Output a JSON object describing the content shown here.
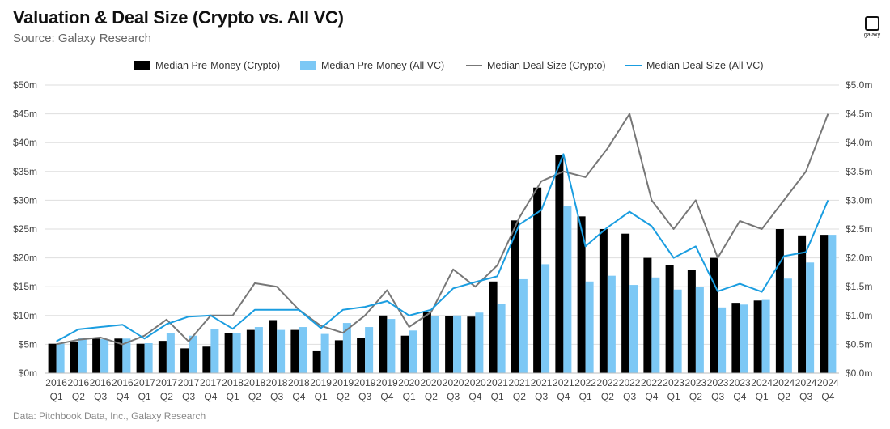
{
  "header": {
    "title": "Valuation & Deal Size (Crypto vs. All VC)",
    "subtitle": "Source: Galaxy Research"
  },
  "footer": {
    "note": "Data: Pitchbook Data, Inc., Galaxy Research"
  },
  "logo": {
    "text": "galaxy",
    "icon": "galaxy-logo-icon"
  },
  "colors": {
    "crypto_bar": "#000000",
    "allvc_bar": "#7cc8f5",
    "crypto_line": "#777777",
    "allvc_line": "#1a9de0"
  },
  "chart_data": {
    "type": "bar",
    "legend_position": "top",
    "grid": true,
    "categories": [
      {
        "year": "2016",
        "q": "Q1"
      },
      {
        "year": "2016",
        "q": "Q2"
      },
      {
        "year": "2016",
        "q": "Q3"
      },
      {
        "year": "2016",
        "q": "Q4"
      },
      {
        "year": "2017",
        "q": "Q1"
      },
      {
        "year": "2017",
        "q": "Q2"
      },
      {
        "year": "2017",
        "q": "Q3"
      },
      {
        "year": "2017",
        "q": "Q4"
      },
      {
        "year": "2018",
        "q": "Q1"
      },
      {
        "year": "2018",
        "q": "Q2"
      },
      {
        "year": "2018",
        "q": "Q3"
      },
      {
        "year": "2018",
        "q": "Q4"
      },
      {
        "year": "2019",
        "q": "Q1"
      },
      {
        "year": "2019",
        "q": "Q2"
      },
      {
        "year": "2019",
        "q": "Q3"
      },
      {
        "year": "2019",
        "q": "Q4"
      },
      {
        "year": "2020",
        "q": "Q1"
      },
      {
        "year": "2020",
        "q": "Q2"
      },
      {
        "year": "2020",
        "q": "Q3"
      },
      {
        "year": "2020",
        "q": "Q4"
      },
      {
        "year": "2021",
        "q": "Q1"
      },
      {
        "year": "2021",
        "q": "Q2"
      },
      {
        "year": "2021",
        "q": "Q3"
      },
      {
        "year": "2021",
        "q": "Q4"
      },
      {
        "year": "2022",
        "q": "Q1"
      },
      {
        "year": "2022",
        "q": "Q2"
      },
      {
        "year": "2022",
        "q": "Q3"
      },
      {
        "year": "2022",
        "q": "Q4"
      },
      {
        "year": "2023",
        "q": "Q1"
      },
      {
        "year": "2023",
        "q": "Q2"
      },
      {
        "year": "2023",
        "q": "Q3"
      },
      {
        "year": "2023",
        "q": "Q4"
      },
      {
        "year": "2024",
        "q": "Q1"
      },
      {
        "year": "2024",
        "q": "Q2"
      },
      {
        "year": "2024",
        "q": "Q3"
      },
      {
        "year": "2024",
        "q": "Q4"
      }
    ],
    "left_axis": {
      "min": 0,
      "max": 50,
      "ticks": [
        "$0m",
        "$5m",
        "$10m",
        "$15m",
        "$20m",
        "$25m",
        "$30m",
        "$35m",
        "$40m",
        "$45m",
        "$50m"
      ]
    },
    "right_axis": {
      "min": 0,
      "max": 5,
      "ticks": [
        "$0.0m",
        "$0.5m",
        "$1.0m",
        "$1.5m",
        "$2.0m",
        "$2.5m",
        "$3.0m",
        "$3.5m",
        "$4.0m",
        "$4.5m",
        "$5.0m"
      ]
    },
    "series": [
      {
        "name": "Median Pre-Money (Crypto)",
        "kind": "bar",
        "axis": "left",
        "color": "#000000",
        "values": [
          5.1,
          5.5,
          6.0,
          6.0,
          5.1,
          5.6,
          4.3,
          4.6,
          7.0,
          7.5,
          9.2,
          7.5,
          3.8,
          5.7,
          6.1,
          10.0,
          6.5,
          10.6,
          9.9,
          9.8,
          15.9,
          26.5,
          32.2,
          37.9,
          27.2,
          25.0,
          24.2,
          20.0,
          18.7,
          17.9,
          20.0,
          12.2,
          12.6,
          25.0,
          23.9,
          24.0
        ]
      },
      {
        "name": "Median Pre-Money (All VC)",
        "kind": "bar",
        "axis": "left",
        "color": "#7cc8f5",
        "values": [
          5.1,
          6.1,
          5.9,
          6.0,
          5.2,
          7.0,
          6.5,
          7.6,
          7.0,
          8.0,
          7.5,
          8.0,
          6.8,
          8.7,
          8.0,
          9.4,
          7.4,
          9.9,
          10.0,
          10.5,
          12.0,
          16.3,
          18.9,
          29.0,
          15.9,
          16.9,
          15.3,
          16.6,
          14.5,
          15.0,
          11.4,
          11.9,
          12.7,
          16.4,
          19.2,
          24.0
        ]
      },
      {
        "name": "Median Deal Size (Crypto)",
        "kind": "line",
        "axis": "right",
        "color": "#777777",
        "values": [
          0.5,
          0.58,
          0.62,
          0.5,
          0.65,
          0.93,
          0.55,
          1.0,
          1.0,
          1.56,
          1.5,
          1.1,
          0.82,
          0.7,
          1.0,
          1.44,
          0.8,
          1.06,
          1.8,
          1.5,
          1.87,
          2.7,
          3.33,
          3.5,
          3.4,
          3.9,
          4.5,
          3.0,
          2.5,
          3.0,
          2.0,
          2.64,
          2.5,
          3.0,
          3.5,
          4.5
        ]
      },
      {
        "name": "Median Deal Size (All VC)",
        "kind": "line",
        "axis": "right",
        "color": "#1a9de0",
        "values": [
          0.55,
          0.76,
          0.8,
          0.84,
          0.6,
          0.85,
          0.98,
          1.0,
          0.77,
          1.1,
          1.1,
          1.1,
          0.78,
          1.1,
          1.15,
          1.25,
          1.0,
          1.1,
          1.47,
          1.58,
          1.68,
          2.58,
          2.83,
          3.8,
          2.2,
          2.53,
          2.8,
          2.55,
          2.0,
          2.2,
          1.42,
          1.55,
          1.41,
          2.03,
          2.1,
          3.0
        ]
      }
    ]
  }
}
